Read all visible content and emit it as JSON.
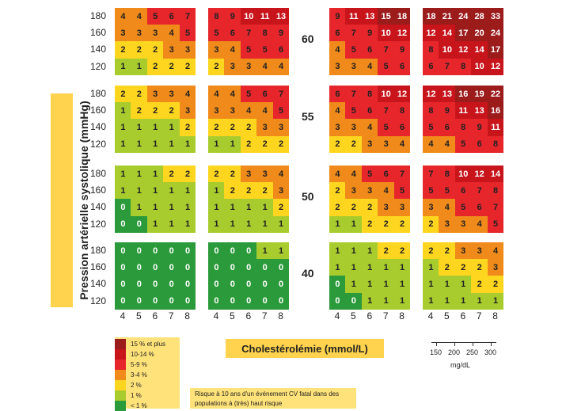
{
  "ylabel": "Pression artérielle systolique (mmHg)",
  "xlabel": "Cholestérolémie (mmol/L)",
  "y_ticks": [
    "180",
    "160",
    "140",
    "120"
  ],
  "x_ticks": [
    "4",
    "5",
    "6",
    "7",
    "8"
  ],
  "legend": [
    {
      "label": "15 % et plus",
      "color": "#9c1b1b"
    },
    {
      "label": "10-14 %",
      "color": "#c8141b"
    },
    {
      "label": "5-9 %",
      "color": "#e6262b"
    },
    {
      "label": "3-4 %",
      "color": "#f08a1a"
    },
    {
      "label": "2 %",
      "color": "#ffd61f"
    },
    {
      "label": "1 %",
      "color": "#a8cc2e"
    },
    {
      "label": "< 1 %",
      "color": "#2a9a3a"
    }
  ],
  "note": "Risque à 10 ans d'un événement CV fatal dans des populations à (très) haut risque",
  "scale": {
    "ticks": [
      "150",
      "200",
      "250",
      "300"
    ],
    "unit": "mg/dL"
  },
  "chart_data": {
    "type": "heatmap",
    "title": "",
    "xlabel": "Cholestérolémie (mmol/L)",
    "ylabel": "Pression artérielle systolique (mmHg)",
    "x": [
      4,
      5,
      6,
      7,
      8
    ],
    "y": [
      180,
      160,
      140,
      120
    ],
    "ages": [
      60,
      55,
      50,
      40
    ],
    "grids": [
      {
        "age": 60,
        "col": 0,
        "values": [
          [
            4,
            4,
            5,
            6,
            7
          ],
          [
            3,
            3,
            3,
            4,
            5
          ],
          [
            2,
            2,
            2,
            3,
            3
          ],
          [
            1,
            1,
            2,
            2,
            2
          ]
        ]
      },
      {
        "age": 60,
        "col": 1,
        "values": [
          [
            8,
            9,
            10,
            11,
            13
          ],
          [
            5,
            6,
            7,
            8,
            9
          ],
          [
            3,
            4,
            5,
            5,
            6
          ],
          [
            2,
            3,
            3,
            4,
            4
          ]
        ]
      },
      {
        "age": 60,
        "col": 2,
        "values": [
          [
            9,
            11,
            13,
            15,
            18
          ],
          [
            6,
            7,
            9,
            10,
            12
          ],
          [
            4,
            5,
            6,
            7,
            9
          ],
          [
            3,
            3,
            4,
            5,
            6
          ]
        ]
      },
      {
        "age": 60,
        "col": 3,
        "values": [
          [
            18,
            21,
            24,
            28,
            33
          ],
          [
            12,
            14,
            17,
            20,
            24
          ],
          [
            8,
            10,
            12,
            14,
            17
          ],
          [
            6,
            7,
            8,
            10,
            12
          ]
        ]
      },
      {
        "age": 55,
        "col": 0,
        "values": [
          [
            2,
            2,
            3,
            3,
            4
          ],
          [
            1,
            2,
            2,
            2,
            3
          ],
          [
            1,
            1,
            1,
            1,
            2
          ],
          [
            1,
            1,
            1,
            1,
            1
          ]
        ]
      },
      {
        "age": 55,
        "col": 1,
        "values": [
          [
            4,
            4,
            5,
            6,
            7
          ],
          [
            3,
            3,
            4,
            4,
            5
          ],
          [
            2,
            2,
            2,
            3,
            3
          ],
          [
            1,
            1,
            2,
            2,
            2
          ]
        ]
      },
      {
        "age": 55,
        "col": 2,
        "values": [
          [
            6,
            7,
            8,
            10,
            12
          ],
          [
            4,
            5,
            6,
            7,
            8
          ],
          [
            3,
            3,
            4,
            5,
            6
          ],
          [
            2,
            2,
            3,
            3,
            4
          ]
        ]
      },
      {
        "age": 55,
        "col": 3,
        "values": [
          [
            12,
            13,
            16,
            19,
            22
          ],
          [
            8,
            9,
            11,
            13,
            16
          ],
          [
            5,
            6,
            8,
            9,
            11
          ],
          [
            4,
            4,
            5,
            6,
            8
          ]
        ]
      },
      {
        "age": 50,
        "col": 0,
        "values": [
          [
            1,
            1,
            1,
            2,
            2
          ],
          [
            1,
            1,
            1,
            1,
            1
          ],
          [
            0,
            1,
            1,
            1,
            1
          ],
          [
            0,
            0,
            1,
            1,
            1
          ]
        ]
      },
      {
        "age": 50,
        "col": 1,
        "values": [
          [
            2,
            2,
            3,
            3,
            4
          ],
          [
            1,
            2,
            2,
            2,
            3
          ],
          [
            1,
            1,
            1,
            1,
            2
          ],
          [
            1,
            1,
            1,
            1,
            1
          ]
        ]
      },
      {
        "age": 50,
        "col": 2,
        "values": [
          [
            4,
            4,
            5,
            6,
            7
          ],
          [
            2,
            3,
            3,
            4,
            5
          ],
          [
            2,
            2,
            2,
            3,
            3
          ],
          [
            1,
            1,
            2,
            2,
            2
          ]
        ]
      },
      {
        "age": 50,
        "col": 3,
        "values": [
          [
            7,
            8,
            10,
            12,
            14
          ],
          [
            5,
            5,
            6,
            7,
            8
          ],
          [
            3,
            4,
            5,
            6,
            7
          ],
          [
            2,
            3,
            3,
            4,
            5
          ]
        ]
      },
      {
        "age": 40,
        "col": 0,
        "values": [
          [
            0,
            0,
            0,
            0,
            0
          ],
          [
            0,
            0,
            0,
            0,
            0
          ],
          [
            0,
            0,
            0,
            0,
            0
          ],
          [
            0,
            0,
            0,
            0,
            0
          ]
        ]
      },
      {
        "age": 40,
        "col": 1,
        "values": [
          [
            0,
            0,
            0,
            1,
            1
          ],
          [
            0,
            0,
            0,
            0,
            0
          ],
          [
            0,
            0,
            0,
            0,
            0
          ],
          [
            0,
            0,
            0,
            0,
            0
          ]
        ]
      },
      {
        "age": 40,
        "col": 2,
        "values": [
          [
            1,
            1,
            1,
            2,
            2
          ],
          [
            1,
            1,
            1,
            1,
            1
          ],
          [
            0,
            1,
            1,
            1,
            1
          ],
          [
            0,
            0,
            1,
            1,
            1
          ]
        ]
      },
      {
        "age": 40,
        "col": 3,
        "values": [
          [
            2,
            2,
            3,
            3,
            4
          ],
          [
            1,
            2,
            2,
            2,
            3
          ],
          [
            1,
            1,
            1,
            2,
            2
          ],
          [
            1,
            1,
            1,
            1,
            1
          ]
        ]
      }
    ]
  }
}
